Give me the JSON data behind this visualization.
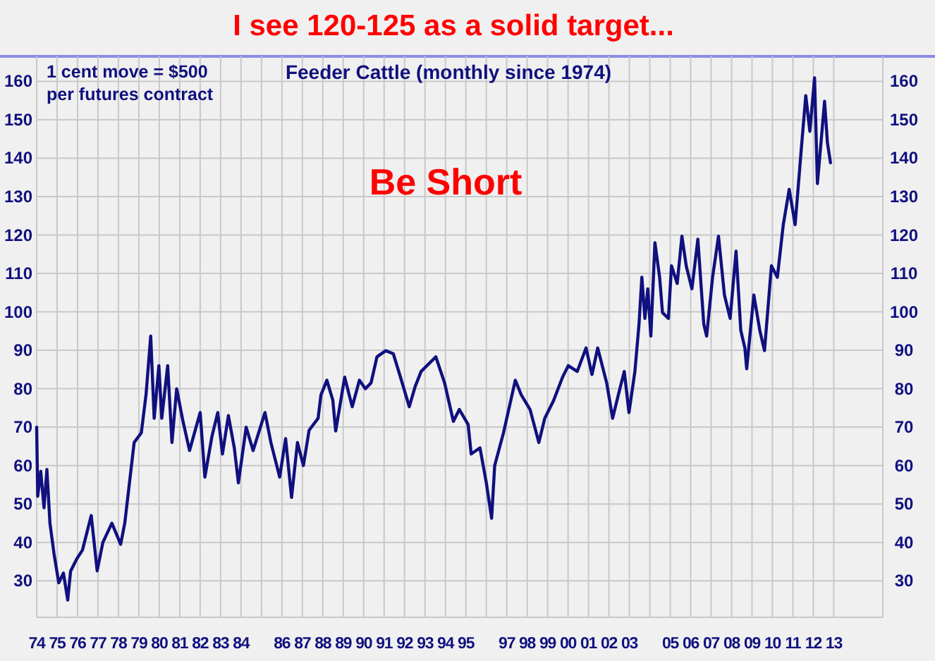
{
  "chart_data": {
    "type": "line",
    "title": "I see 120-125 as a solid target...",
    "subtitle": "Feeder Cattle (monthly since 1974)",
    "annotations": [
      "1 cent move = $500 per futures contract",
      "Be Short"
    ],
    "x": [
      1974.0,
      1974.05,
      1974.2,
      1974.36,
      1974.5,
      1974.65,
      1974.85,
      1975.08,
      1975.31,
      1975.52,
      1975.66,
      1975.95,
      1976.24,
      1976.67,
      1976.96,
      1977.24,
      1977.68,
      1978.11,
      1978.31,
      1978.54,
      1978.77,
      1979.12,
      1979.35,
      1979.58,
      1979.75,
      1979.98,
      1980.12,
      1980.41,
      1980.62,
      1980.85,
      1981.14,
      1981.48,
      1982.0,
      1982.23,
      1982.58,
      1982.86,
      1983.09,
      1983.38,
      1983.67,
      1983.87,
      1984.25,
      1984.59,
      1985.17,
      1985.46,
      1985.89,
      1986.18,
      1986.47,
      1986.76,
      1987.05,
      1987.33,
      1987.77,
      1987.91,
      1988.2,
      1988.49,
      1988.63,
      1989.07,
      1989.44,
      1989.79,
      1990.08,
      1990.36,
      1990.65,
      1991.08,
      1991.45,
      1991.8,
      1992.23,
      1992.52,
      1992.81,
      1993.53,
      1993.96,
      1994.39,
      1994.68,
      1995.11,
      1995.26,
      1995.69,
      1996.0,
      1996.26,
      1996.41,
      1996.84,
      1997.42,
      1997.71,
      1998.14,
      1998.57,
      1998.86,
      1999.29,
      1999.73,
      2000.01,
      2000.45,
      2000.88,
      2001.17,
      2001.45,
      2001.89,
      2002.18,
      2002.46,
      2002.75,
      2002.98,
      2003.27,
      2003.47,
      2003.61,
      2003.76,
      2003.9,
      2004.05,
      2004.25,
      2004.48,
      2004.62,
      2004.91,
      2005.06,
      2005.34,
      2005.57,
      2005.78,
      2006.06,
      2006.35,
      2006.64,
      2006.78,
      2007.07,
      2007.36,
      2007.65,
      2007.93,
      2008.22,
      2008.45,
      2008.65,
      2008.74,
      2009.09,
      2009.38,
      2009.61,
      2009.95,
      2010.24,
      2010.53,
      2010.82,
      2011.11,
      2011.39,
      2011.63,
      2011.83,
      2012.06,
      2012.2,
      2012.4,
      2012.55,
      2012.69,
      2012.84
    ],
    "series": [
      {
        "color": "#10107f",
        "values": [
          70,
          52,
          58.5,
          49,
          59,
          45,
          37,
          29.5,
          32,
          25,
          32.5,
          35.6,
          38,
          47,
          32.6,
          40,
          45,
          39.5,
          45,
          55.5,
          66,
          68.5,
          78.4,
          93.7,
          72.3,
          86,
          72.3,
          86,
          66,
          80,
          72,
          63.9,
          73.8,
          57,
          67.7,
          73.8,
          63,
          73,
          64.6,
          55.5,
          70,
          63.9,
          73.8,
          66,
          57,
          67,
          51.7,
          66,
          60,
          69.2,
          72.3,
          78.4,
          82.2,
          77,
          69,
          83,
          75.3,
          82.2,
          80,
          81.5,
          88.3,
          89.9,
          89.1,
          83,
          75.3,
          80.6,
          84.5,
          88.3,
          81.5,
          71.5,
          74.6,
          70.7,
          63,
          64.6,
          55.5,
          46.3,
          60,
          68.5,
          82.2,
          78.4,
          74.6,
          66,
          72.3,
          76.9,
          83,
          86,
          84.5,
          90.6,
          83.7,
          90.6,
          81.5,
          72.3,
          78.4,
          84.5,
          73.8,
          84.5,
          96.7,
          109,
          98.3,
          106,
          93.7,
          118,
          109,
          99.8,
          98.3,
          112,
          107.4,
          119.7,
          112,
          106,
          118.9,
          96.8,
          93.7,
          109,
          119.7,
          104.4,
          98.3,
          115.8,
          95.2,
          90.6,
          85.2,
          104.4,
          95.2,
          89.9,
          112,
          109,
          122.7,
          131.9,
          122.7,
          141,
          156.3,
          147,
          160.9,
          133.4,
          145.6,
          154.8,
          144,
          138.8
        ]
      }
    ],
    "xlim": [
      1974,
      2015.4
    ],
    "xticks": [
      {
        "value": 1974,
        "label": "74"
      },
      {
        "value": 1975,
        "label": "75"
      },
      {
        "value": 1976,
        "label": "76"
      },
      {
        "value": 1977,
        "label": "77"
      },
      {
        "value": 1978,
        "label": "78"
      },
      {
        "value": 1979,
        "label": "79"
      },
      {
        "value": 1980,
        "label": "80"
      },
      {
        "value": 1981,
        "label": "81"
      },
      {
        "value": 1982,
        "label": "82"
      },
      {
        "value": 1983,
        "label": "83"
      },
      {
        "value": 1984,
        "label": "84"
      },
      {
        "value": 1985,
        "label": null
      },
      {
        "value": 1986,
        "label": "86"
      },
      {
        "value": 1987,
        "label": "87"
      },
      {
        "value": 1988,
        "label": "88"
      },
      {
        "value": 1989,
        "label": "89"
      },
      {
        "value": 1990,
        "label": "90"
      },
      {
        "value": 1991,
        "label": "91"
      },
      {
        "value": 1992,
        "label": "92"
      },
      {
        "value": 1993,
        "label": "93"
      },
      {
        "value": 1994,
        "label": "94"
      },
      {
        "value": 1995,
        "label": "95"
      },
      {
        "value": 1996,
        "label": null
      },
      {
        "value": 1997,
        "label": "97"
      },
      {
        "value": 1998,
        "label": "98"
      },
      {
        "value": 1999,
        "label": "99"
      },
      {
        "value": 2000,
        "label": "00"
      },
      {
        "value": 2001,
        "label": "01"
      },
      {
        "value": 2002,
        "label": "02"
      },
      {
        "value": 2003,
        "label": "03"
      },
      {
        "value": 2004,
        "label": null
      },
      {
        "value": 2005,
        "label": "05"
      },
      {
        "value": 2006,
        "label": "06"
      },
      {
        "value": 2007,
        "label": "07"
      },
      {
        "value": 2008,
        "label": "08"
      },
      {
        "value": 2009,
        "label": "09"
      },
      {
        "value": 2010,
        "label": "10"
      },
      {
        "value": 2011,
        "label": "11"
      },
      {
        "value": 2012,
        "label": "12"
      },
      {
        "value": 2013,
        "label": "13"
      }
    ],
    "ylim": [
      20.5,
      166.5
    ],
    "yticks": [
      30,
      40,
      50,
      60,
      70,
      80,
      90,
      100,
      110,
      120,
      130,
      140,
      150,
      160
    ],
    "y2lim": [
      20.5,
      166.5
    ],
    "y2ticks": [
      30,
      40,
      50,
      60,
      70,
      80,
      90,
      100,
      110,
      120,
      130,
      140,
      150,
      160
    ],
    "grid": true,
    "marker": "none",
    "line_style": "solid"
  }
}
